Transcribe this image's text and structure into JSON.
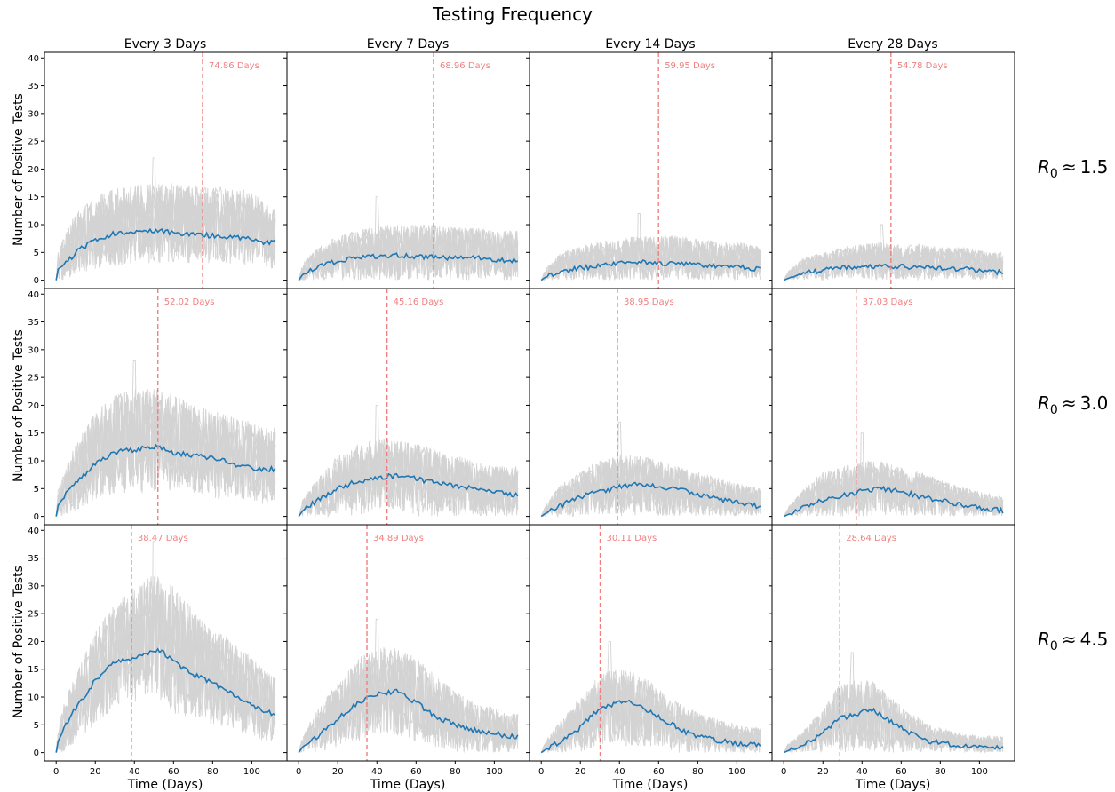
{
  "figure": {
    "title": "Testing Frequency",
    "column_titles": [
      "Every 3 Days",
      "Every 7 Days",
      "Every 14 Days",
      "Every 28 Days"
    ],
    "row_labels": [
      "R0 ≈ 1.5",
      "R0 ≈ 3.0",
      "R0 ≈ 4.5"
    ],
    "row_label_parts": [
      {
        "symbol": "R",
        "subscript": "0",
        "relation": "≈",
        "value": "1.5"
      },
      {
        "symbol": "R",
        "subscript": "0",
        "relation": "≈",
        "value": "3.0"
      },
      {
        "symbol": "R",
        "subscript": "0",
        "relation": "≈",
        "value": "4.5"
      }
    ],
    "ylabel": "Number of Positive Tests",
    "xlabel": "Time (Days)",
    "colors": {
      "mean_line": "#1f77b4",
      "simulations": "#d3d3d3",
      "vline": "#f08080",
      "axes": "#000000"
    }
  },
  "chart_data": {
    "type": "line",
    "x_range": [
      0,
      112
    ],
    "xlim": [
      -6,
      118
    ],
    "ylim": [
      -1.5,
      41
    ],
    "xticks": [
      0,
      20,
      40,
      60,
      80,
      100
    ],
    "yticks": [
      0,
      5,
      10,
      15,
      20,
      25,
      30,
      35,
      40
    ],
    "xlabel": "Time (Days)",
    "ylabel": "Number of Positive Tests",
    "grid": false,
    "legend": "none",
    "panels": [
      {
        "row": 0,
        "col": 0,
        "r0": "1.5",
        "frequency": "Every 3 Days",
        "vline_x": 74.86,
        "vline_label": "74.86 Days",
        "mean": {
          "x": [
            0,
            1,
            5,
            10,
            20,
            30,
            40,
            50,
            60,
            70,
            80,
            90,
            100,
            106,
            112
          ],
          "y": [
            0,
            2,
            3,
            5,
            7.3,
            8.4,
            8.6,
            8.9,
            8.6,
            8.3,
            8,
            7.8,
            7.3,
            6.7,
            7
          ]
        },
        "band": {
          "x": [
            0,
            1,
            5,
            10,
            20,
            30,
            40,
            50,
            60,
            70,
            80,
            90,
            100,
            106,
            112
          ],
          "upper": [
            0,
            5,
            9,
            12,
            15,
            16.5,
            17,
            17.5,
            17.5,
            17,
            17,
            16.5,
            16,
            14,
            13
          ],
          "lower": [
            0,
            0,
            0,
            1,
            2,
            2.5,
            3,
            3,
            3,
            3,
            3,
            3,
            2.5,
            2,
            2
          ],
          "peak": 22
        }
      },
      {
        "row": 0,
        "col": 1,
        "r0": "1.5",
        "frequency": "Every 7 Days",
        "vline_x": 68.96,
        "vline_label": "68.96 Days",
        "mean": {
          "x": [
            0,
            2,
            10,
            20,
            30,
            40,
            50,
            60,
            70,
            80,
            90,
            100,
            106,
            112
          ],
          "y": [
            0,
            1,
            2.5,
            3.5,
            4,
            4.3,
            4.5,
            4.3,
            4.2,
            4,
            4,
            3.7,
            3.6,
            3.6
          ]
        },
        "band": {
          "x": [
            0,
            2,
            10,
            20,
            30,
            40,
            50,
            60,
            70,
            80,
            90,
            100,
            106,
            112
          ],
          "upper": [
            0,
            3,
            6,
            8,
            9,
            10,
            10,
            10,
            10,
            9.5,
            9.5,
            9,
            9,
            9
          ],
          "lower": [
            0,
            0,
            0,
            0,
            0,
            0,
            0,
            0,
            0,
            0,
            0,
            0,
            0,
            0
          ],
          "peak": 15
        }
      },
      {
        "row": 0,
        "col": 2,
        "r0": "1.5",
        "frequency": "Every 14 Days",
        "vline_x": 59.95,
        "vline_label": "59.95 Days",
        "mean": {
          "x": [
            0,
            2,
            10,
            20,
            30,
            40,
            50,
            60,
            70,
            80,
            90,
            100,
            106,
            112
          ],
          "y": [
            0,
            0.5,
            1.5,
            2.2,
            2.6,
            3,
            3.2,
            3.1,
            3,
            2.8,
            2.6,
            2.4,
            2.2,
            2
          ]
        },
        "band": {
          "x": [
            0,
            2,
            10,
            20,
            30,
            40,
            50,
            60,
            70,
            80,
            90,
            100,
            106,
            112
          ],
          "upper": [
            0,
            2,
            5,
            6,
            7,
            7.5,
            8,
            8,
            8,
            7.5,
            7,
            7,
            6.5,
            6
          ],
          "lower": [
            0,
            0,
            0,
            0,
            0,
            0,
            0,
            0,
            0,
            0,
            0,
            0,
            0,
            0
          ],
          "peak": 12
        }
      },
      {
        "row": 0,
        "col": 3,
        "r0": "1.5",
        "frequency": "Every 28 Days",
        "vline_x": 54.78,
        "vline_label": "54.78 Days",
        "mean": {
          "x": [
            0,
            2,
            10,
            20,
            30,
            40,
            50,
            60,
            70,
            80,
            90,
            100,
            106,
            112
          ],
          "y": [
            0,
            0.3,
            1.2,
            1.8,
            2.2,
            2.4,
            2.6,
            2.5,
            2.3,
            2.2,
            2,
            1.8,
            1.6,
            1.4
          ]
        },
        "band": {
          "x": [
            0,
            2,
            10,
            20,
            30,
            40,
            50,
            60,
            70,
            80,
            90,
            100,
            106,
            112
          ],
          "upper": [
            0,
            1.5,
            4,
            5,
            6,
            6.5,
            7,
            6.5,
            6.5,
            6,
            6,
            5.5,
            5,
            5
          ],
          "lower": [
            0,
            0,
            0,
            0,
            0,
            0,
            0,
            0,
            0,
            0,
            0,
            0,
            0,
            0
          ],
          "peak": 10
        }
      },
      {
        "row": 1,
        "col": 0,
        "r0": "3.0",
        "frequency": "Every 3 Days",
        "vline_x": 52.02,
        "vline_label": "52.02 Days",
        "mean": {
          "x": [
            0,
            1,
            5,
            10,
            20,
            30,
            40,
            50,
            60,
            70,
            80,
            90,
            100,
            106,
            112
          ],
          "y": [
            0,
            2,
            4,
            6,
            9.5,
            11.5,
            12,
            12.5,
            11.5,
            11,
            10.5,
            9.5,
            8.8,
            8.5,
            8.5
          ]
        },
        "band": {
          "x": [
            0,
            1,
            5,
            10,
            20,
            30,
            40,
            50,
            60,
            70,
            80,
            90,
            100,
            106,
            112
          ],
          "upper": [
            0,
            5,
            9,
            13,
            19,
            22,
            23,
            23,
            22,
            20,
            19,
            18,
            17,
            16,
            16
          ],
          "lower": [
            0,
            0,
            0,
            1,
            3,
            4,
            4,
            4,
            4,
            4,
            3,
            3,
            3,
            2,
            2
          ],
          "peak": 28
        }
      },
      {
        "row": 1,
        "col": 1,
        "r0": "3.0",
        "frequency": "Every 7 Days",
        "vline_x": 45.16,
        "vline_label": "45.16 Days",
        "mean": {
          "x": [
            0,
            2,
            10,
            20,
            30,
            40,
            50,
            60,
            70,
            80,
            90,
            100,
            106,
            112
          ],
          "y": [
            0,
            1,
            3,
            5,
            6.3,
            7,
            7.3,
            6.8,
            6,
            5.5,
            5,
            4.5,
            4,
            4
          ]
        },
        "band": {
          "x": [
            0,
            2,
            10,
            20,
            30,
            40,
            50,
            60,
            70,
            80,
            90,
            100,
            106,
            112
          ],
          "upper": [
            0,
            3,
            7,
            11,
            13,
            14,
            14,
            13,
            12,
            11,
            10,
            9,
            9,
            9
          ],
          "lower": [
            0,
            0,
            0,
            0,
            0,
            1,
            1,
            0,
            0,
            0,
            0,
            0,
            0,
            0
          ],
          "peak": 20
        }
      },
      {
        "row": 1,
        "col": 2,
        "r0": "3.0",
        "frequency": "Every 14 Days",
        "vline_x": 38.95,
        "vline_label": "38.95 Days",
        "mean": {
          "x": [
            0,
            2,
            10,
            20,
            30,
            40,
            50,
            60,
            70,
            80,
            90,
            100,
            106,
            112
          ],
          "y": [
            0,
            0.5,
            2,
            3.5,
            4.5,
            5.3,
            5.8,
            5.5,
            4.8,
            4,
            3.2,
            2.5,
            2,
            1.8
          ]
        },
        "band": {
          "x": [
            0,
            2,
            10,
            20,
            30,
            40,
            50,
            60,
            70,
            80,
            90,
            100,
            106,
            112
          ],
          "upper": [
            0,
            2,
            6,
            8,
            10,
            11,
            11,
            10,
            9,
            8,
            7,
            6,
            5.5,
            5
          ],
          "lower": [
            0,
            0,
            0,
            0,
            0,
            0,
            0,
            0,
            0,
            0,
            0,
            0,
            0,
            0
          ],
          "peak": 17
        }
      },
      {
        "row": 1,
        "col": 3,
        "r0": "3.0",
        "frequency": "Every 28 Days",
        "vline_x": 37.03,
        "vline_label": "37.03 Days",
        "mean": {
          "x": [
            0,
            2,
            10,
            20,
            30,
            40,
            50,
            60,
            70,
            80,
            90,
            100,
            106,
            112
          ],
          "y": [
            0,
            0.3,
            1.5,
            3,
            3.8,
            4.5,
            5,
            4.5,
            3.5,
            2.8,
            2.2,
            1.6,
            1.3,
            1
          ]
        },
        "band": {
          "x": [
            0,
            2,
            10,
            20,
            30,
            40,
            50,
            60,
            70,
            80,
            90,
            100,
            106,
            112
          ],
          "upper": [
            0,
            1.5,
            5,
            8,
            9,
            10,
            10,
            9,
            8,
            6.5,
            5.5,
            4.5,
            4,
            3.5
          ],
          "lower": [
            0,
            0,
            0,
            0,
            0,
            0,
            0,
            0,
            0,
            0,
            0,
            0,
            0,
            0
          ],
          "peak": 15
        }
      },
      {
        "row": 2,
        "col": 0,
        "r0": "4.5",
        "frequency": "Every 3 Days",
        "vline_x": 38.47,
        "vline_label": "38.47 Days",
        "mean": {
          "x": [
            0,
            1,
            5,
            10,
            20,
            30,
            40,
            50,
            55,
            60,
            70,
            80,
            90,
            100,
            106,
            112
          ],
          "y": [
            0,
            2,
            5,
            8,
            13,
            16.5,
            17,
            18.5,
            18,
            16.5,
            14,
            12.5,
            10.5,
            8.5,
            7.5,
            6.8
          ]
        },
        "band": {
          "x": [
            0,
            1,
            5,
            10,
            20,
            30,
            40,
            50,
            55,
            60,
            70,
            80,
            90,
            100,
            106,
            112
          ],
          "upper": [
            0,
            5,
            10,
            14,
            22,
            27,
            30,
            32,
            32,
            30,
            26,
            23,
            20,
            17,
            15,
            14
          ],
          "lower": [
            0,
            0,
            0,
            2,
            5,
            8,
            9,
            9,
            8,
            7,
            6,
            5,
            4,
            3,
            2,
            2
          ],
          "peak": 38
        }
      },
      {
        "row": 2,
        "col": 1,
        "r0": "4.5",
        "frequency": "Every 7 Days",
        "vline_x": 34.89,
        "vline_label": "34.89 Days",
        "mean": {
          "x": [
            0,
            2,
            10,
            20,
            30,
            40,
            50,
            60,
            70,
            80,
            90,
            100,
            106,
            112
          ],
          "y": [
            0,
            1,
            3,
            6,
            9,
            10.5,
            11,
            9,
            6.5,
            5,
            4,
            3.5,
            3,
            2.8
          ]
        },
        "band": {
          "x": [
            0,
            2,
            10,
            20,
            30,
            40,
            50,
            60,
            70,
            80,
            90,
            100,
            106,
            112
          ],
          "upper": [
            0,
            3,
            8,
            13,
            17,
            19,
            19,
            17,
            14,
            11,
            9,
            8,
            7,
            7
          ],
          "lower": [
            0,
            0,
            0,
            1,
            2,
            3,
            3,
            2,
            1,
            0,
            0,
            0,
            0,
            0
          ],
          "peak": 24
        }
      },
      {
        "row": 2,
        "col": 2,
        "r0": "4.5",
        "frequency": "Every 14 Days",
        "vline_x": 30.11,
        "vline_label": "30.11 Days",
        "mean": {
          "x": [
            0,
            2,
            10,
            20,
            30,
            35,
            45,
            55,
            65,
            75,
            90,
            100,
            106,
            112
          ],
          "y": [
            0,
            0.5,
            2,
            4.5,
            8,
            8.5,
            9.3,
            7.5,
            5.5,
            3.5,
            2.2,
            1.7,
            1.5,
            1.3
          ]
        },
        "band": {
          "x": [
            0,
            2,
            10,
            20,
            30,
            35,
            45,
            55,
            65,
            75,
            90,
            100,
            106,
            112
          ],
          "upper": [
            0,
            2,
            6,
            10,
            14,
            15,
            15,
            13,
            10,
            8,
            6,
            5,
            4.5,
            4.5
          ],
          "lower": [
            0,
            0,
            0,
            0,
            1,
            1,
            1,
            1,
            0,
            0,
            0,
            0,
            0,
            0
          ],
          "peak": 20
        }
      },
      {
        "row": 2,
        "col": 3,
        "r0": "4.5",
        "frequency": "Every 28 Days",
        "vline_x": 28.64,
        "vline_label": "28.64 Days",
        "mean": {
          "x": [
            0,
            2,
            10,
            20,
            28,
            35,
            45,
            55,
            65,
            75,
            90,
            100,
            106,
            112
          ],
          "y": [
            0,
            0.3,
            1.5,
            3.5,
            6,
            6.8,
            7.8,
            5.5,
            3.5,
            2,
            1.3,
            1,
            0.9,
            0.8
          ]
        },
        "band": {
          "x": [
            0,
            2,
            10,
            20,
            28,
            35,
            45,
            55,
            65,
            75,
            90,
            100,
            106,
            112
          ],
          "upper": [
            0,
            1.5,
            4,
            8,
            12,
            13,
            13,
            10,
            7,
            5,
            3.5,
            3,
            3,
            3
          ],
          "lower": [
            0,
            0,
            0,
            0,
            0,
            0,
            0,
            0,
            0,
            0,
            0,
            0,
            0,
            0
          ],
          "peak": 18
        }
      }
    ]
  }
}
